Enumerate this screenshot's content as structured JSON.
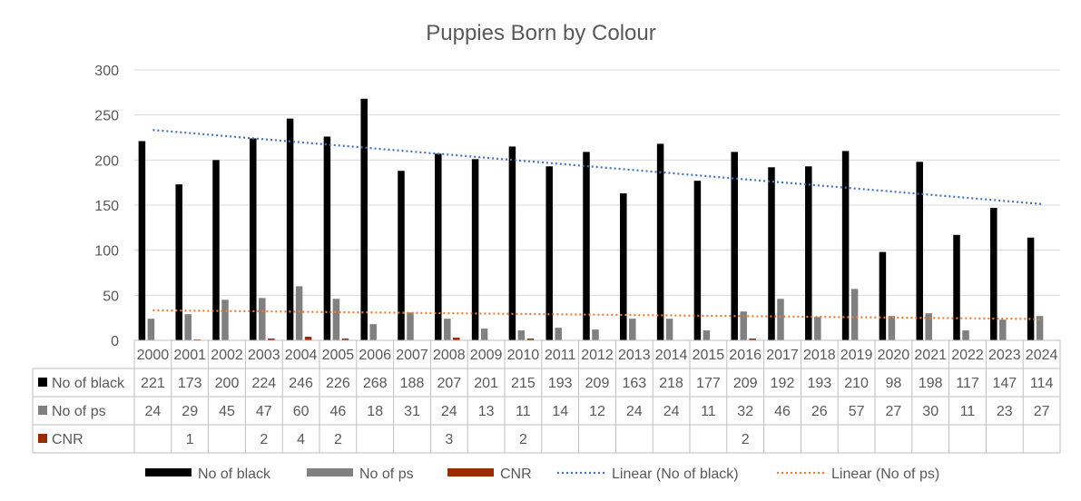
{
  "chart_data": {
    "type": "bar",
    "title": "Puppies Born by Colour",
    "categories": [
      "2000",
      "2001",
      "2002",
      "2003",
      "2004",
      "2005",
      "2006",
      "2007",
      "2008",
      "2009",
      "2010",
      "2011",
      "2012",
      "2013",
      "2014",
      "2015",
      "2016",
      "2017",
      "2018",
      "2019",
      "2020",
      "2021",
      "2022",
      "2023",
      "2024"
    ],
    "ylim": [
      0,
      300
    ],
    "yticks": [
      "0",
      "50",
      "100",
      "150",
      "200",
      "250",
      "300"
    ],
    "grid": true,
    "legend_position": "bottom",
    "data_table": true,
    "series": [
      {
        "name": "No of black",
        "color": "#000000",
        "values": [
          221,
          173,
          200,
          224,
          246,
          226,
          268,
          188,
          207,
          201,
          215,
          193,
          209,
          163,
          218,
          177,
          209,
          192,
          193,
          210,
          98,
          198,
          117,
          147,
          114
        ]
      },
      {
        "name": "No of ps",
        "color": "#808080",
        "values": [
          24,
          29,
          45,
          47,
          60,
          46,
          18,
          31,
          24,
          13,
          11,
          14,
          12,
          24,
          24,
          11,
          32,
          46,
          26,
          57,
          27,
          30,
          11,
          23,
          27
        ]
      },
      {
        "name": "CNR",
        "color": "#9e2a00",
        "values": [
          null,
          1,
          null,
          2,
          4,
          2,
          null,
          null,
          3,
          null,
          2,
          null,
          null,
          null,
          null,
          null,
          2,
          null,
          null,
          null,
          null,
          null,
          null,
          null,
          null
        ]
      }
    ],
    "trendlines": [
      {
        "name": "Linear (No of black)",
        "color": "#4472c4",
        "of_series": "No of black"
      },
      {
        "name": "Linear (No of ps)",
        "color": "#ed7d31",
        "of_series": "No of ps"
      }
    ]
  }
}
